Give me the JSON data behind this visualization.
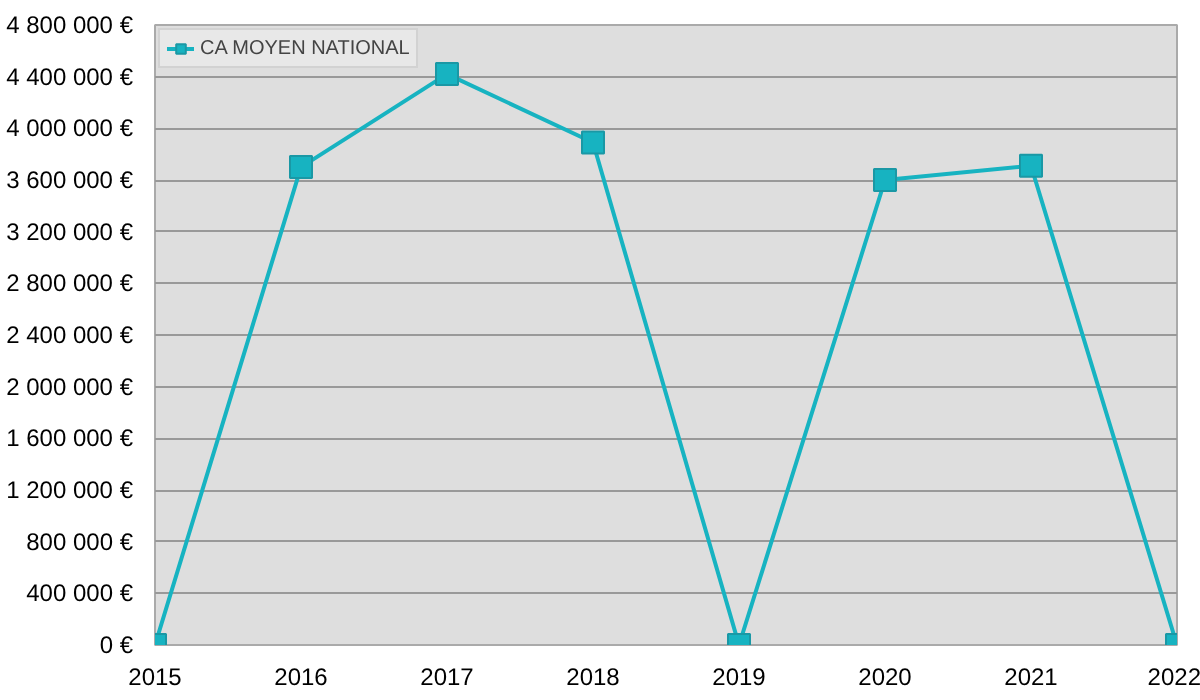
{
  "chart_data": {
    "type": "line",
    "x": [
      2015,
      2016,
      2017,
      2018,
      2019,
      2020,
      2021,
      2022
    ],
    "series": [
      {
        "name": "CA MOYEN NATIONAL",
        "color": "#17b3c1",
        "values": [
          0,
          3700000,
          4420000,
          3890000,
          0,
          3600000,
          3710000,
          0
        ]
      }
    ],
    "xlim": [
      2015,
      2022
    ],
    "xticks": [
      2015,
      2016,
      2017,
      2018,
      2019,
      2020,
      2021,
      2022
    ],
    "ylim": [
      0,
      4800000
    ],
    "yticks": [
      {
        "value": 0,
        "label": "0 €"
      },
      {
        "value": 400000,
        "label": "400 000 €"
      },
      {
        "value": 800000,
        "label": "800 000 €"
      },
      {
        "value": 1200000,
        "label": "1 200 000 €"
      },
      {
        "value": 1600000,
        "label": "1 600 000 €"
      },
      {
        "value": 2000000,
        "label": "2 000 000 €"
      },
      {
        "value": 2400000,
        "label": "2 400 000 €"
      },
      {
        "value": 2800000,
        "label": "2 800 000 €"
      },
      {
        "value": 3200000,
        "label": "3 200 000 €"
      },
      {
        "value": 3600000,
        "label": "3 600 000 €"
      },
      {
        "value": 4000000,
        "label": "4 000 000 €"
      },
      {
        "value": 4400000,
        "label": "4 400 000 €"
      },
      {
        "value": 4800000,
        "label": "4 800 000 €"
      }
    ],
    "grid": "y",
    "legend": "top left",
    "marker": "square",
    "line_style": "solid"
  }
}
